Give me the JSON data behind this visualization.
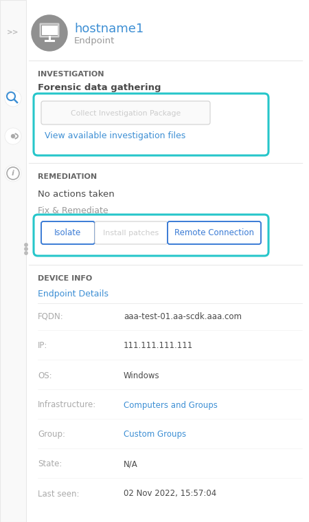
{
  "bg_color": "#ffffff",
  "teal_border": "#26c6ca",
  "blue_link": "#3d8fd4",
  "blue_btn": "#3a7bd5",
  "dark_text": "#4a4a4a",
  "gray_text": "#999999",
  "label_gray": "#aaaaaa",
  "section_hdr": "#666666",
  "hostname": "hostname1",
  "node_type": "Endpoint",
  "node_icon_bg": "#909090",
  "section1_title": "INVESTIGATION",
  "section1_sub": "Forensic data gathering",
  "btn1_text": "Collect Investigation Package",
  "link1_text": "View available investigation files",
  "section2_title": "REMEDIATION",
  "no_actions": "No actions taken",
  "fix_label": "Fix & Remediate",
  "btn_isolate": "Isolate",
  "btn_patches": "Install patches",
  "btn_remote": "Remote Connection",
  "section3_title": "DEVICE INFO",
  "device_sub": "Endpoint Details",
  "fields": [
    "FQDN:",
    "IP:",
    "OS:",
    "Infrastructure:",
    "Group:",
    "State:",
    "Last seen:"
  ],
  "values": [
    "aaa-test-01.aa-scdk.aaa.com",
    "111.111.111.111",
    "Windows",
    "Computers and Groups",
    "Custom Groups",
    "N/A",
    "02 Nov 2022, 15:57:04"
  ],
  "field_color": "#aaaaaa",
  "value_color": "#4a4a4a",
  "infra_color": "#3d8fd4",
  "group_color": "#3d8fd4",
  "dots_color": "#bbbbbb",
  "sidebar_bg": "#f9f9f9",
  "sidebar_border": "#e8e8e8",
  "sep_color": "#e8e8e8"
}
